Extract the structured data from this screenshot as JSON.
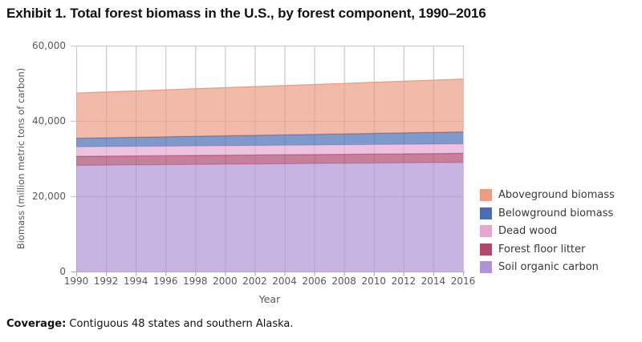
{
  "title": "Exhibit 1. Total forest biomass in the U.S., by forest component, 1990–2016",
  "footer": {
    "label": "Coverage:",
    "text": " Contiguous 48 states and southern Alaska."
  },
  "chart_data": {
    "type": "area",
    "stacked": true,
    "title": "Exhibit 1. Total forest biomass in the U.S., by forest component, 1990–2016",
    "xlabel": "Year",
    "ylabel": "Biomass (million metric tons of carbon)",
    "x": [
      1990,
      1992,
      1994,
      1996,
      1998,
      2000,
      2002,
      2004,
      2006,
      2008,
      2010,
      2012,
      2014,
      2016
    ],
    "ylim": [
      0,
      60000
    ],
    "yticks": [
      0,
      20000,
      40000,
      60000
    ],
    "ytick_labels": [
      "0",
      "20,000",
      "40,000",
      "60,000"
    ],
    "grid": true,
    "legend_position": "right",
    "series": [
      {
        "name": "Soil organic carbon",
        "color": "#AF94D3",
        "values": [
          28200,
          28260,
          28320,
          28380,
          28450,
          28510,
          28570,
          28630,
          28690,
          28750,
          28820,
          28880,
          28940,
          29000
        ]
      },
      {
        "name": "Forest floor litter",
        "color": "#AF4A6E",
        "values": [
          2400,
          2400,
          2400,
          2400,
          2400,
          2400,
          2400,
          2400,
          2400,
          2400,
          2400,
          2400,
          2400,
          2400
        ]
      },
      {
        "name": "Dead wood",
        "color": "#E7A6D1",
        "values": [
          2500,
          2500,
          2500,
          2500,
          2500,
          2500,
          2500,
          2500,
          2500,
          2500,
          2500,
          2500,
          2500,
          2500
        ]
      },
      {
        "name": "Belowground biomass",
        "color": "#4A6DB5",
        "values": [
          2300,
          2370,
          2440,
          2510,
          2580,
          2650,
          2720,
          2780,
          2850,
          2920,
          2990,
          3060,
          3130,
          3200
        ]
      },
      {
        "name": "Aboveground biomass",
        "color": "#EC9C84",
        "values": [
          12000,
          12150,
          12310,
          12460,
          12620,
          12770,
          12920,
          13080,
          13230,
          13380,
          13540,
          13690,
          13850,
          14000
        ]
      }
    ],
    "legend": [
      {
        "label": "Aboveground biomass",
        "color": "#EC9C84"
      },
      {
        "label": "Belowground biomass",
        "color": "#4A6DB5"
      },
      {
        "label": "Dead wood",
        "color": "#E7A6D1"
      },
      {
        "label": "Forest floor litter",
        "color": "#AF4A6E"
      },
      {
        "label": "Soil organic carbon",
        "color": "#AF94D3"
      }
    ],
    "colors": {
      "gridline": "#cccccc",
      "axis": "#a9b5cf",
      "tick_text": "#595959",
      "fill_opacity": 0.7
    }
  }
}
